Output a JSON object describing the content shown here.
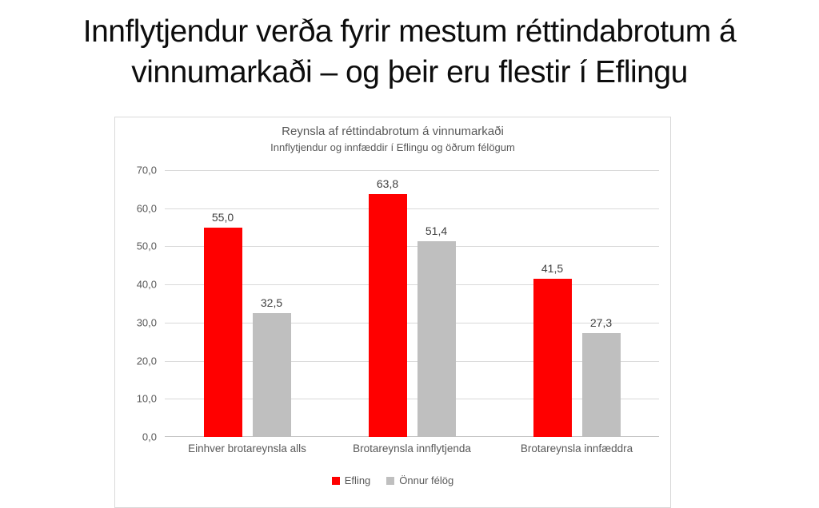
{
  "slide": {
    "title_line1": "Innflytjendur verða fyrir mestum réttindabrotum á",
    "title_line2": "vinnumarkaði – og þeir eru flestir í Eflingu"
  },
  "chart_data": {
    "type": "bar",
    "title": "Reynsla af réttindabrotum á vinnumarkaði",
    "subtitle": "Innflytjendur og innfæddir í Eflingu og öðrum félögum",
    "categories": [
      "Einhver brotareynsla alls",
      "Brotareynsla innflytjenda",
      "Brotareynsla innfæddra"
    ],
    "series": [
      {
        "name": "Efling",
        "color": "#ff0000",
        "values": [
          55.0,
          63.8,
          41.5
        ],
        "value_labels": [
          "55,0",
          "63,8",
          "41,5"
        ]
      },
      {
        "name": "Önnur félög",
        "color": "#bfbfbf",
        "values": [
          32.5,
          51.4,
          27.3
        ],
        "value_labels": [
          "32,5",
          "51,4",
          "27,3"
        ]
      }
    ],
    "ylim": [
      0,
      70
    ],
    "y_ticks": [
      {
        "v": 0,
        "label": "0,0"
      },
      {
        "v": 10,
        "label": "10,0"
      },
      {
        "v": 20,
        "label": "20,0"
      },
      {
        "v": 30,
        "label": "30,0"
      },
      {
        "v": 40,
        "label": "40,0"
      },
      {
        "v": 50,
        "label": "50,0"
      },
      {
        "v": 60,
        "label": "60,0"
      },
      {
        "v": 70,
        "label": "70,0"
      }
    ],
    "grid": true,
    "grid_color": "#d9d9d9",
    "baseline_color": "#c6c6c6",
    "legend_position": "bottom"
  }
}
